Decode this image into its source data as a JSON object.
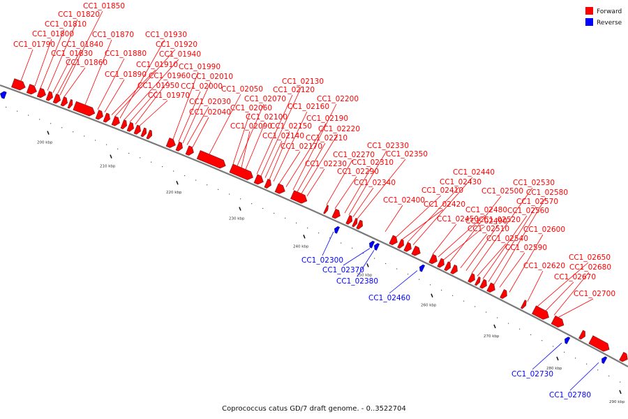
{
  "caption": "Coprococcus catus GD/7 draft genome. - 0..3522704",
  "legend": [
    {
      "label": "Forward",
      "color": "#ff0000"
    },
    {
      "label": "Reverse",
      "color": "#0000ff"
    }
  ],
  "colors": {
    "forward": "#ff0000",
    "reverse": "#0000ff",
    "backbone": "#888888"
  },
  "ticks": [
    "200 kbp",
    "210 kbp",
    "220 kbp",
    "230 kbp",
    "240 kbp",
    "250 kbp",
    "260 kbp",
    "270 kbp",
    "280 kbp",
    "290 kbp"
  ],
  "forward_labels": [
    "CC1_01790",
    "CC1_01800",
    "CC1_01810",
    "CC1_01820",
    "CC1_01830",
    "CC1_01840",
    "CC1_01850",
    "CC1_01860",
    "CC1_01870",
    "CC1_01880",
    "CC1_01890",
    "CC1_01910",
    "CC1_01920",
    "CC1_01930",
    "CC1_01940",
    "CC1_01950",
    "CC1_01960",
    "CC1_01970",
    "CC1_01990",
    "CC1_02000",
    "CC1_02010",
    "CC1_02030",
    "CC1_02040",
    "CC1_02050",
    "CC1_02060",
    "CC1_02070",
    "CC1_02090",
    "CC1_02100",
    "CC1_02120",
    "CC1_02130",
    "CC1_02140",
    "CC1_02150",
    "CC1_02160",
    "CC1_02170",
    "CC1_02190",
    "CC1_02200",
    "CC1_02210",
    "CC1_02220",
    "CC1_02230",
    "CC1_02270",
    "CC1_02290",
    "CC1_02310",
    "CC1_02330",
    "CC1_02340",
    "CC1_02350",
    "CC1_02400",
    "CC1_02410",
    "CC1_02420",
    "CC1_02430",
    "CC1_02440",
    "CC1_02450",
    "CC1_02480",
    "CC1_02490",
    "CC1_02500",
    "CC1_02510",
    "CC1_02520",
    "CC1_02530",
    "CC1_02540",
    "CC1_02560",
    "CC1_02570",
    "CC1_02580",
    "CC1_02590",
    "CC1_02600",
    "CC1_02620",
    "CC1_02650",
    "CC1_02670",
    "CC1_02680",
    "CC1_02700"
  ],
  "reverse_labels": [
    "CC1_02300",
    "CC1_02370",
    "CC1_02380",
    "CC1_02460",
    "CC1_02730",
    "CC1_02780"
  ]
}
